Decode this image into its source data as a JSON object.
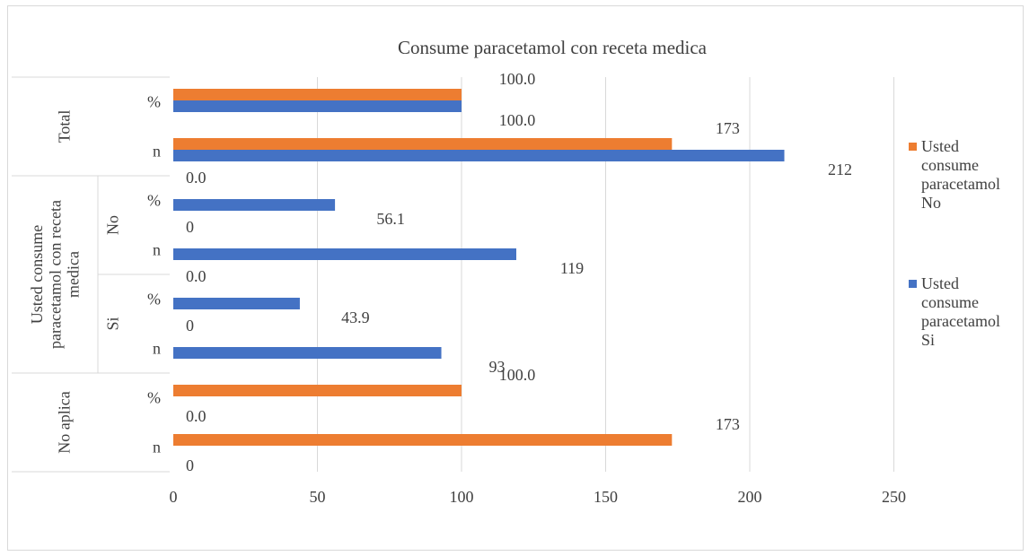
{
  "chart_data": {
    "type": "bar",
    "orientation": "horizontal",
    "title": "Consume paracetamol con receta medica",
    "xlim": [
      0,
      250
    ],
    "x_ticks": [
      "0",
      "50",
      "100",
      "150",
      "200",
      "250"
    ],
    "grid": "vertical",
    "legend_position": "right",
    "groups": [
      {
        "label": "Total",
        "subgroups": [
          {
            "label": "",
            "categories": [
              "%",
              "n"
            ]
          }
        ]
      },
      {
        "label": "Usted consume paracetamol con receta medica",
        "subgroups": [
          {
            "label": "No",
            "categories": [
              "%",
              "n"
            ]
          },
          {
            "label": "Si",
            "categories": [
              "%",
              "n"
            ]
          }
        ]
      },
      {
        "label": "No aplica",
        "subgroups": [
          {
            "label": "",
            "categories": [
              "%",
              "n"
            ]
          }
        ]
      }
    ],
    "rows": [
      "Total %",
      "Total n",
      "No %",
      "No n",
      "Si %",
      "Si n",
      "No aplica %",
      "No aplica n"
    ],
    "series": [
      {
        "name": "Usted consume paracetamol No",
        "color": "#ED7D31",
        "values": [
          100.0,
          173,
          0.0,
          0,
          0.0,
          0,
          100.0,
          173
        ],
        "labels": [
          "100.0",
          "173",
          "0.0",
          "0",
          "0.0",
          "0",
          "100.0",
          "173"
        ]
      },
      {
        "name": "Usted consume paracetamol Si",
        "color": "#4472C4",
        "values": [
          100.0,
          212,
          56.1,
          119,
          43.9,
          93,
          0.0,
          0
        ],
        "labels": [
          "100.0",
          "212",
          "56.1",
          "119",
          "43.9",
          "93",
          "0.0",
          "0"
        ]
      }
    ],
    "legend": [
      {
        "lines": [
          "Usted",
          "consume",
          "paracetamol",
          "No"
        ],
        "color": "#ED7D31"
      },
      {
        "lines": [
          "Usted",
          "consume",
          "paracetamol",
          "Si"
        ],
        "color": "#4472C4"
      }
    ]
  }
}
